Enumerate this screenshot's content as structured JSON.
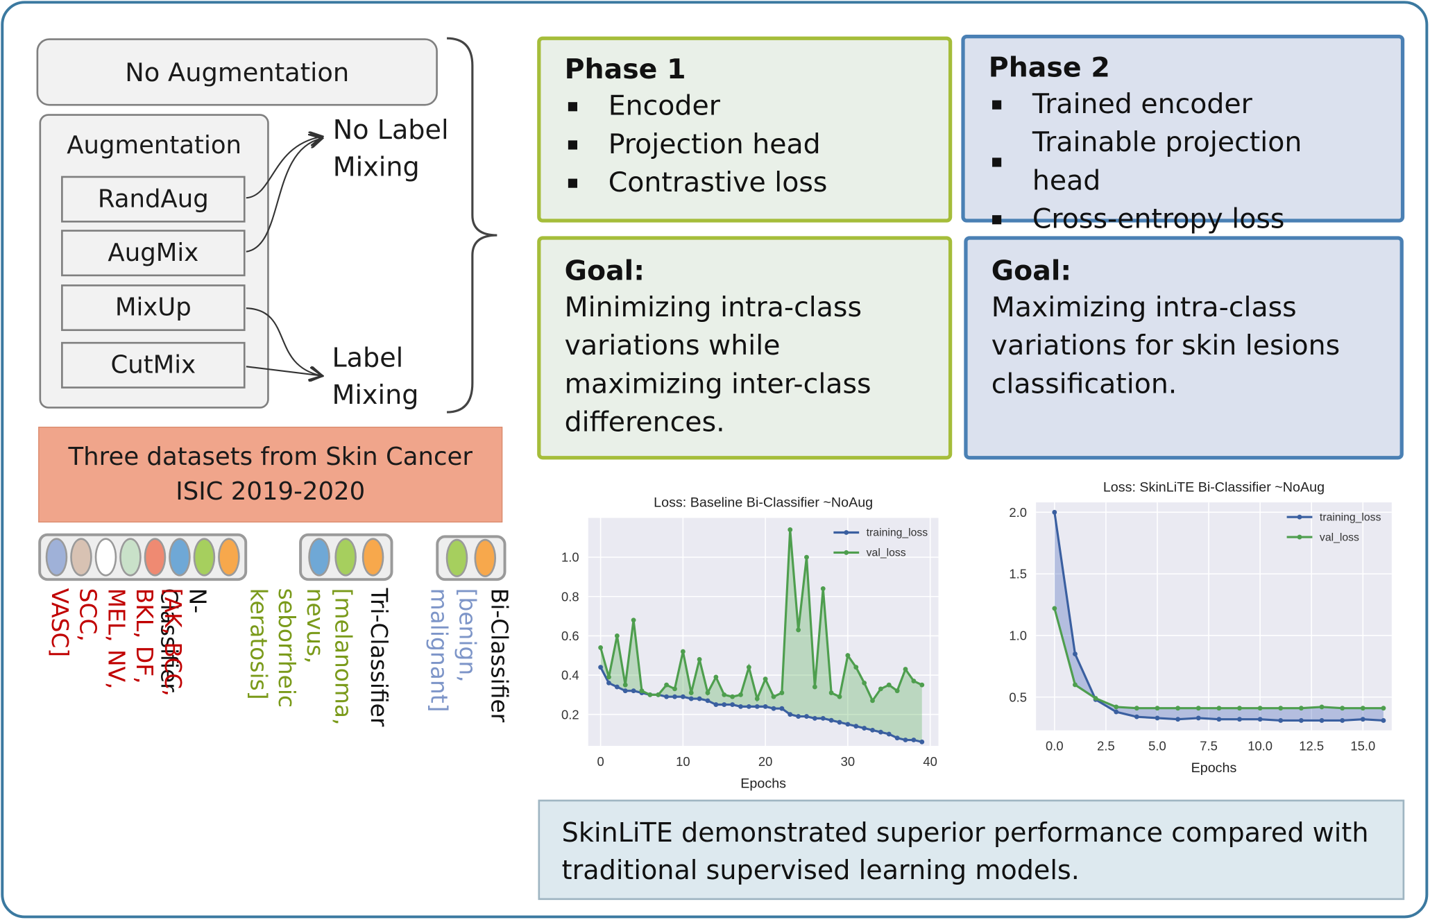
{
  "augmentation": {
    "no_aug": "No Augmentation",
    "aug_title": "Augmentation",
    "methods": [
      "RandAug",
      "AugMix",
      "MixUp",
      "CutMix"
    ],
    "no_label_mixing": "No Label Mixing",
    "label_mixing": "Label Mixing"
  },
  "datasets": {
    "title": "Three datasets from Skin Cancer ISIC 2019-2020",
    "n_classifier": {
      "name": "N-Classifier",
      "classes": "[AK, BCC, BKL, DF, MEL, NV, SCC, VASC]"
    },
    "tri_classifier": {
      "name": "Tri-Classifier",
      "classes": "[melanoma, nevus, seborrheic keratosis]"
    },
    "bi_classifier": {
      "name": "Bi-Classifier",
      "classes": "[benign, malignant]"
    },
    "colors": {
      "n": [
        "#9fb1d8",
        "#d8c2b3",
        "#ffffff",
        "#c9e1c9",
        "#ef8a72",
        "#6fa8d6",
        "#a6cf5e",
        "#f7a84c"
      ],
      "tri": [
        "#6fa8d6",
        "#a6cf5e",
        "#f7a84c"
      ],
      "bi": [
        "#a6cf5e",
        "#f7a84c"
      ],
      "n_text": "#c00000",
      "tri_text": "#7a9a1a",
      "bi_text": "#7d95c8"
    }
  },
  "phase1": {
    "title": "Phase 1",
    "items": [
      "Encoder",
      "Projection head",
      "Contrastive loss"
    ],
    "goal_title": "Goal:",
    "goal_text": "Minimizing intra-class variations while maximizing inter-class differences."
  },
  "phase2": {
    "title": "Phase 2",
    "items": [
      "Trained encoder",
      "Trainable projection head",
      "Cross-entropy loss"
    ],
    "goal_title": "Goal:",
    "goal_text": "Maximizing intra-class variations for skin lesions classification."
  },
  "conclusion": "SkinLiTE demonstrated superior performance compared with traditional supervised learning models.",
  "chart_data": [
    {
      "type": "line",
      "title": "Loss: Baseline Bi-Classifier ~NoAug",
      "xlabel": "Epochs",
      "ylabel": "",
      "xlim": [
        -1.5,
        41
      ],
      "ylim": [
        0.04,
        1.2
      ],
      "xticks": [
        0,
        10,
        20,
        30,
        40
      ],
      "yticks": [
        0.2,
        0.4,
        0.6,
        0.8,
        1.0
      ],
      "legend_position": "top-right",
      "grid": true,
      "x": [
        0,
        1,
        2,
        3,
        4,
        5,
        6,
        7,
        8,
        9,
        10,
        11,
        12,
        13,
        14,
        15,
        16,
        17,
        18,
        19,
        20,
        21,
        22,
        23,
        24,
        25,
        26,
        27,
        28,
        29,
        30,
        31,
        32,
        33,
        34,
        35,
        36,
        37,
        38,
        39
      ],
      "series": [
        {
          "name": "training_loss",
          "color": "#3a5fa0",
          "values": [
            0.44,
            0.36,
            0.34,
            0.32,
            0.32,
            0.31,
            0.3,
            0.3,
            0.29,
            0.29,
            0.29,
            0.28,
            0.28,
            0.27,
            0.25,
            0.25,
            0.25,
            0.24,
            0.24,
            0.24,
            0.24,
            0.23,
            0.23,
            0.2,
            0.19,
            0.19,
            0.18,
            0.18,
            0.17,
            0.16,
            0.15,
            0.14,
            0.13,
            0.12,
            0.11,
            0.1,
            0.08,
            0.07,
            0.07,
            0.06
          ]
        },
        {
          "name": "val_loss",
          "color": "#4e9e4e",
          "values": [
            0.54,
            0.39,
            0.6,
            0.35,
            0.68,
            0.32,
            0.3,
            0.3,
            0.35,
            0.33,
            0.52,
            0.31,
            0.48,
            0.31,
            0.39,
            0.3,
            0.29,
            0.3,
            0.44,
            0.28,
            0.38,
            0.29,
            0.31,
            1.14,
            0.63,
            1.0,
            0.34,
            0.84,
            0.31,
            0.29,
            0.5,
            0.44,
            0.36,
            0.27,
            0.33,
            0.35,
            0.32,
            0.43,
            0.37,
            0.35
          ]
        }
      ]
    },
    {
      "type": "line",
      "title": "Loss: SkinLiTE Bi-Classifier ~NoAug",
      "xlabel": "Epochs",
      "ylabel": "",
      "xlim": [
        -0.9,
        16.4
      ],
      "ylim": [
        0.23,
        2.08
      ],
      "xticks": [
        0.0,
        2.5,
        5.0,
        7.5,
        10.0,
        12.5,
        15.0
      ],
      "yticks": [
        0.5,
        1.0,
        1.5,
        2.0
      ],
      "legend_position": "top-right",
      "grid": true,
      "x": [
        0,
        1,
        2,
        3,
        4,
        5,
        6,
        7,
        8,
        9,
        10,
        11,
        12,
        13,
        14,
        15,
        16
      ],
      "series": [
        {
          "name": "training_loss",
          "color": "#3a5fa0",
          "values": [
            2.0,
            0.85,
            0.48,
            0.38,
            0.34,
            0.33,
            0.32,
            0.33,
            0.32,
            0.32,
            0.32,
            0.31,
            0.31,
            0.31,
            0.31,
            0.32,
            0.31
          ]
        },
        {
          "name": "val_loss",
          "color": "#4e9e4e",
          "values": [
            1.22,
            0.6,
            0.49,
            0.42,
            0.41,
            0.41,
            0.41,
            0.41,
            0.41,
            0.41,
            0.41,
            0.41,
            0.41,
            0.42,
            0.41,
            0.41,
            0.41
          ]
        }
      ]
    }
  ]
}
